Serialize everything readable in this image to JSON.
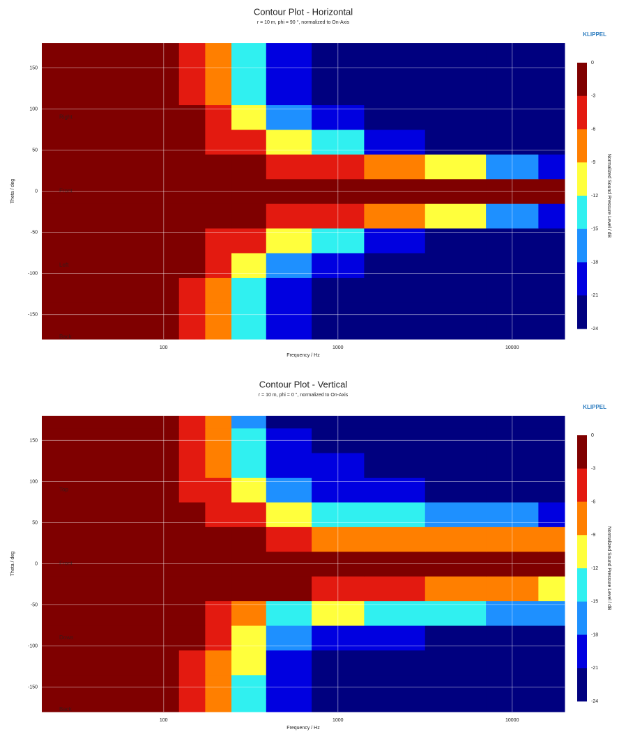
{
  "chart_data": [
    {
      "type": "contour",
      "title": "Contour Plot - Horizontal",
      "subtitle": "r = 10 m, phi = 90 °, normalized to On-Axis",
      "brand": "KLIPPEL",
      "xlabel": "Frequency / Hz",
      "ylabel": "Theta / deg",
      "colorbar_label": "Normalized Sound Pressure Level / dB",
      "xscale": "log",
      "xlim": [
        20,
        20000
      ],
      "xticks": [
        100,
        1000,
        10000
      ],
      "ylim": [
        -180,
        180
      ],
      "yticks": [
        -150,
        -100,
        -50,
        0,
        50,
        100,
        150
      ],
      "grid": true,
      "annotations": [
        "Right",
        "Front",
        "Left",
        "Back"
      ],
      "levels": [
        0,
        -3,
        -6,
        -9,
        -12,
        -15,
        -18,
        -21,
        -24
      ],
      "colors": [
        "#7f0000",
        "#e31a10",
        "#ff7f00",
        "#ffff3c",
        "#30f0f0",
        "#1e90ff",
        "#0000e0",
        "#00007f"
      ],
      "x": [
        20,
        100,
        150,
        200,
        300,
        500,
        1000,
        2000,
        5000,
        10000,
        20000
      ],
      "y": [
        -180,
        -150,
        -120,
        -90,
        -60,
        -30,
        0,
        30,
        60,
        90,
        120,
        150,
        180
      ],
      "z": [
        [
          -1,
          -1,
          -4,
          -8,
          -14,
          -20,
          -22,
          -24,
          -24,
          -24,
          -24
        ],
        [
          -1,
          -1,
          -4,
          -8,
          -14,
          -20,
          -22,
          -24,
          -24,
          -24,
          -24
        ],
        [
          -1,
          -1,
          -4,
          -8,
          -14,
          -20,
          -22,
          -24,
          -24,
          -24,
          -24
        ],
        [
          -1,
          -1,
          -3,
          -6,
          -10,
          -16,
          -20,
          -23,
          -24,
          -24,
          -24
        ],
        [
          -1,
          -1,
          -2,
          -4,
          -6,
          -10,
          -15,
          -21,
          -23,
          -23,
          -23
        ],
        [
          -1,
          -1,
          -1,
          -2,
          -3,
          -4,
          -5,
          -7,
          -12,
          -18,
          -20
        ],
        [
          -1,
          -1,
          -1,
          -1,
          -1,
          -1,
          -1,
          -1,
          -1,
          -1,
          -1
        ],
        [
          -1,
          -1,
          -1,
          -2,
          -3,
          -4,
          -5,
          -7,
          -12,
          -18,
          -20
        ],
        [
          -1,
          -1,
          -2,
          -4,
          -6,
          -10,
          -15,
          -21,
          -23,
          -23,
          -23
        ],
        [
          -1,
          -1,
          -3,
          -6,
          -10,
          -16,
          -20,
          -23,
          -24,
          -24,
          -24
        ],
        [
          -1,
          -1,
          -4,
          -8,
          -14,
          -20,
          -22,
          -24,
          -24,
          -24,
          -24
        ],
        [
          -1,
          -1,
          -4,
          -8,
          -14,
          -20,
          -22,
          -24,
          -24,
          -24,
          -24
        ],
        [
          -1,
          -1,
          -4,
          -8,
          -14,
          -20,
          -22,
          -24,
          -24,
          -24,
          -24
        ]
      ]
    },
    {
      "type": "contour",
      "title": "Contour Plot - Vertical",
      "subtitle": "r = 10 m, phi = 0 °, normalized to On-Axis",
      "brand": "KLIPPEL",
      "xlabel": "Frequency / Hz",
      "ylabel": "Theta / deg",
      "colorbar_label": "Normalized Sound Pressure Level / dB",
      "xscale": "log",
      "xlim": [
        20,
        20000
      ],
      "xticks": [
        100,
        1000,
        10000
      ],
      "ylim": [
        -180,
        180
      ],
      "yticks": [
        -150,
        -100,
        -50,
        0,
        50,
        100,
        150
      ],
      "grid": true,
      "annotations": [
        "Top",
        "Front",
        "Down",
        "Back"
      ],
      "levels": [
        0,
        -3,
        -6,
        -9,
        -12,
        -15,
        -18,
        -21,
        -24
      ],
      "colors": [
        "#7f0000",
        "#e31a10",
        "#ff7f00",
        "#ffff3c",
        "#30f0f0",
        "#1e90ff",
        "#0000e0",
        "#00007f"
      ],
      "x": [
        20,
        100,
        150,
        200,
        300,
        500,
        1000,
        2000,
        5000,
        10000,
        20000
      ],
      "y": [
        -180,
        -150,
        -120,
        -90,
        -60,
        -30,
        0,
        30,
        60,
        90,
        120,
        150,
        180
      ],
      "z": [
        [
          -1,
          -2,
          -4,
          -8,
          -13,
          -21,
          -23,
          -24,
          -24,
          -24,
          -24
        ],
        [
          -1,
          -2,
          -4,
          -8,
          -13,
          -21,
          -23,
          -24,
          -24,
          -24,
          -24
        ],
        [
          -1,
          -1,
          -4,
          -7,
          -12,
          -20,
          -22,
          -23,
          -24,
          -24,
          -24
        ],
        [
          -1,
          -1,
          -3,
          -6,
          -10,
          -18,
          -20,
          -21,
          -22,
          -23,
          -23
        ],
        [
          -1,
          -1,
          -2,
          -4,
          -8,
          -14,
          -12,
          -13,
          -13,
          -16,
          -16
        ],
        [
          -1,
          -1,
          -1,
          -1,
          -2,
          -3,
          -6,
          -6,
          -7,
          -8,
          -10
        ],
        [
          -1,
          -1,
          -1,
          -1,
          -1,
          -1,
          -1,
          -1,
          -1,
          -1,
          -3
        ],
        [
          -1,
          -1,
          -1,
          -1,
          -2,
          -5,
          -7,
          -8,
          -9,
          -9,
          -8
        ],
        [
          -1,
          -1,
          -2,
          -4,
          -5,
          -12,
          -14,
          -15,
          -16,
          -16,
          -20
        ],
        [
          -1,
          -2,
          -4,
          -6,
          -10,
          -16,
          -19,
          -20,
          -22,
          -22,
          -22
        ],
        [
          -1,
          -2,
          -4,
          -7,
          -13,
          -19,
          -21,
          -22,
          -23,
          -23,
          -23
        ],
        [
          -1,
          -2,
          -4,
          -7,
          -14,
          -20,
          -22,
          -23,
          -24,
          -24,
          -24
        ],
        [
          -1,
          -2,
          -4,
          -7,
          -16,
          -22,
          -24,
          -24,
          -24,
          -24,
          -24
        ]
      ]
    }
  ]
}
